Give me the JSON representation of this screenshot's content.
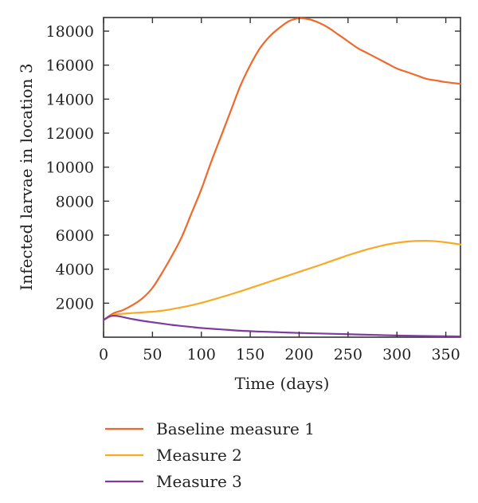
{
  "chart_data": {
    "type": "line",
    "xlabel": "Time (days)",
    "ylabel": "Infected larvae in location 3",
    "xlim": [
      0,
      365
    ],
    "ylim": [
      0,
      18800
    ],
    "xticks": [
      0,
      50,
      100,
      150,
      200,
      250,
      300,
      350
    ],
    "yticks": [
      2000,
      4000,
      6000,
      8000,
      10000,
      12000,
      14000,
      16000,
      18000
    ],
    "grid": false,
    "legend_position": "bottom",
    "series": [
      {
        "name": "Baseline measure 1",
        "color": "#ee6a2c",
        "x": [
          0,
          10,
          20,
          30,
          40,
          50,
          60,
          70,
          80,
          90,
          100,
          110,
          120,
          130,
          140,
          150,
          160,
          170,
          180,
          190,
          200,
          210,
          220,
          230,
          240,
          250,
          260,
          270,
          280,
          290,
          300,
          310,
          320,
          330,
          340,
          350,
          365
        ],
        "y": [
          1000,
          1400,
          1600,
          1900,
          2300,
          2900,
          3800,
          4800,
          5900,
          7300,
          8700,
          10300,
          11800,
          13300,
          14800,
          16000,
          17000,
          17700,
          18200,
          18600,
          18750,
          18700,
          18500,
          18200,
          17800,
          17400,
          17000,
          16700,
          16400,
          16100,
          15800,
          15600,
          15400,
          15200,
          15100,
          15000,
          14900
        ]
      },
      {
        "name": "Measure 2",
        "color": "#f8a925",
        "x": [
          0,
          10,
          20,
          30,
          40,
          50,
          60,
          70,
          80,
          90,
          100,
          110,
          120,
          130,
          140,
          150,
          160,
          170,
          180,
          190,
          200,
          210,
          220,
          230,
          240,
          250,
          260,
          270,
          280,
          290,
          300,
          310,
          320,
          330,
          340,
          350,
          365
        ],
        "y": [
          1000,
          1300,
          1380,
          1420,
          1460,
          1500,
          1560,
          1650,
          1760,
          1880,
          2020,
          2180,
          2350,
          2520,
          2700,
          2890,
          3080,
          3270,
          3460,
          3650,
          3840,
          4030,
          4220,
          4420,
          4620,
          4820,
          5000,
          5170,
          5320,
          5450,
          5550,
          5620,
          5660,
          5670,
          5640,
          5580,
          5450
        ]
      },
      {
        "name": "Measure 3",
        "color": "#7d3ca0",
        "x": [
          0,
          5,
          10,
          15,
          20,
          30,
          40,
          50,
          60,
          70,
          80,
          90,
          100,
          120,
          140,
          160,
          180,
          200,
          220,
          240,
          260,
          280,
          300,
          320,
          340,
          365
        ],
        "y": [
          1000,
          1200,
          1260,
          1240,
          1180,
          1060,
          960,
          880,
          800,
          720,
          660,
          600,
          540,
          460,
          380,
          330,
          290,
          250,
          220,
          190,
          160,
          130,
          100,
          80,
          60,
          40
        ]
      }
    ]
  }
}
